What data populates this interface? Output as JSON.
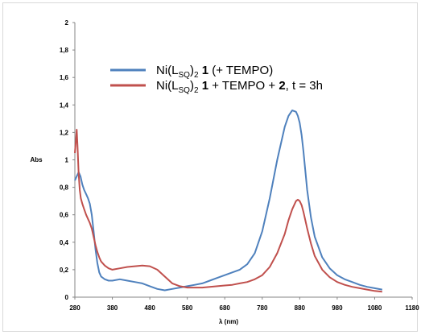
{
  "chart_data": {
    "type": "line",
    "xlabel": "λ (nm)",
    "ylabel": "Abs",
    "xlim": [
      280,
      1180
    ],
    "ylim": [
      0,
      2
    ],
    "x_ticks": [
      "280",
      "380",
      "480",
      "580",
      "680",
      "780",
      "880",
      "980",
      "1080",
      "1180"
    ],
    "y_ticks": [
      "0",
      "0,2",
      "0,4",
      "0,6",
      "0,8",
      "1",
      "1,2",
      "1,4",
      "1,6",
      "1,8",
      "2"
    ],
    "grid": false,
    "legend_position": "top-center",
    "series": [
      {
        "color": "#4f81bd",
        "legend": {
          "name": "Ni(L",
          "sub": "SQ",
          "mid": ")",
          "sub2": "2",
          "bold": " 1",
          "tail": " (+ TEMPO)",
          "bold2": "",
          "tail2": ""
        },
        "x": [
          280,
          285,
          290,
          295,
          300,
          305,
          310,
          315,
          320,
          325,
          330,
          335,
          340,
          345,
          350,
          360,
          370,
          380,
          400,
          420,
          440,
          460,
          480,
          500,
          520,
          540,
          560,
          580,
          600,
          620,
          640,
          660,
          680,
          700,
          720,
          740,
          760,
          780,
          800,
          820,
          840,
          850,
          860,
          870,
          875,
          880,
          885,
          890,
          895,
          900,
          910,
          920,
          940,
          960,
          980,
          1000,
          1020,
          1040,
          1060,
          1080,
          1100
        ],
        "y": [
          0.85,
          0.88,
          0.91,
          0.88,
          0.82,
          0.78,
          0.75,
          0.72,
          0.68,
          0.6,
          0.48,
          0.35,
          0.25,
          0.18,
          0.15,
          0.13,
          0.12,
          0.12,
          0.13,
          0.12,
          0.11,
          0.1,
          0.08,
          0.06,
          0.05,
          0.06,
          0.07,
          0.08,
          0.09,
          0.1,
          0.12,
          0.14,
          0.16,
          0.18,
          0.2,
          0.24,
          0.32,
          0.48,
          0.72,
          1.0,
          1.24,
          1.32,
          1.36,
          1.35,
          1.32,
          1.27,
          1.18,
          1.06,
          0.92,
          0.78,
          0.58,
          0.44,
          0.29,
          0.21,
          0.16,
          0.13,
          0.11,
          0.09,
          0.075,
          0.065,
          0.055
        ]
      },
      {
        "color": "#c0504d",
        "legend": {
          "name": "Ni(L",
          "sub": "SQ",
          "mid": ")",
          "sub2": "2",
          "bold": " 1",
          "tail": " + TEMPO + ",
          "bold2": "2",
          "tail2": ", t = 3h"
        },
        "x": [
          280,
          283,
          285,
          287,
          290,
          293,
          296,
          300,
          305,
          310,
          315,
          320,
          325,
          330,
          335,
          340,
          345,
          350,
          360,
          370,
          380,
          400,
          420,
          440,
          460,
          480,
          500,
          520,
          540,
          560,
          580,
          600,
          620,
          640,
          660,
          680,
          700,
          720,
          740,
          760,
          780,
          800,
          820,
          840,
          850,
          860,
          870,
          875,
          880,
          885,
          890,
          895,
          900,
          910,
          920,
          940,
          960,
          980,
          1000,
          1020,
          1040,
          1060,
          1080,
          1100
        ],
        "y": [
          1.05,
          1.15,
          1.22,
          1.1,
          0.9,
          0.78,
          0.72,
          0.68,
          0.64,
          0.6,
          0.57,
          0.54,
          0.5,
          0.44,
          0.38,
          0.33,
          0.29,
          0.26,
          0.23,
          0.21,
          0.2,
          0.21,
          0.22,
          0.225,
          0.23,
          0.225,
          0.2,
          0.15,
          0.1,
          0.08,
          0.07,
          0.07,
          0.07,
          0.075,
          0.08,
          0.085,
          0.09,
          0.1,
          0.11,
          0.13,
          0.16,
          0.22,
          0.32,
          0.46,
          0.56,
          0.64,
          0.7,
          0.71,
          0.7,
          0.67,
          0.62,
          0.56,
          0.5,
          0.39,
          0.3,
          0.2,
          0.145,
          0.11,
          0.09,
          0.075,
          0.065,
          0.055,
          0.045,
          0.04
        ]
      }
    ]
  }
}
